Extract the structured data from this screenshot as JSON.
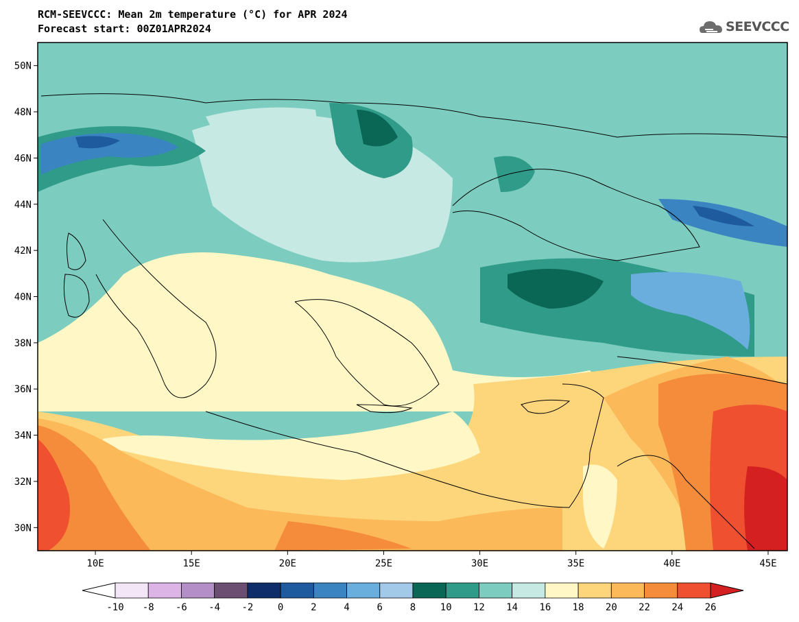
{
  "header": {
    "title": "RCM-SEEVCCC: Mean 2m temperature (°C) for APR 2024",
    "subtitle": "Forecast start: 00Z01APR2024"
  },
  "logo": {
    "text": "SEEVCCC",
    "icon": "cloud-icon"
  },
  "map": {
    "variable": "Mean 2m temperature",
    "units": "°C",
    "lon_range": [
      7,
      46
    ],
    "lat_range": [
      29,
      51
    ],
    "lat_ticks": [
      "50N",
      "48N",
      "46N",
      "44N",
      "42N",
      "40N",
      "38N",
      "36N",
      "34N",
      "32N",
      "30N"
    ],
    "lon_ticks": [
      "10E",
      "15E",
      "20E",
      "25E",
      "30E",
      "35E",
      "40E",
      "45E"
    ]
  },
  "colorbar": {
    "labels": [
      "-10",
      "-8",
      "-6",
      "-4",
      "-2",
      "0",
      "2",
      "4",
      "6",
      "8",
      "10",
      "12",
      "14",
      "16",
      "18",
      "20",
      "22",
      "24",
      "26"
    ],
    "colors": [
      "#f3e6f7",
      "#dcb5e6",
      "#b48fc7",
      "#6b4e72",
      "#0f2d6b",
      "#1e5a9e",
      "#3a84c2",
      "#6aaede",
      "#a3c9e8",
      "#0a6655",
      "#2f9b88",
      "#7ccdbf",
      "#c6e9e4",
      "#fff8c6",
      "#fdd67c",
      "#fbb95a",
      "#f58c3c",
      "#ef5030"
    ],
    "under_color": "#ffffff",
    "over_color": "#d42020"
  }
}
